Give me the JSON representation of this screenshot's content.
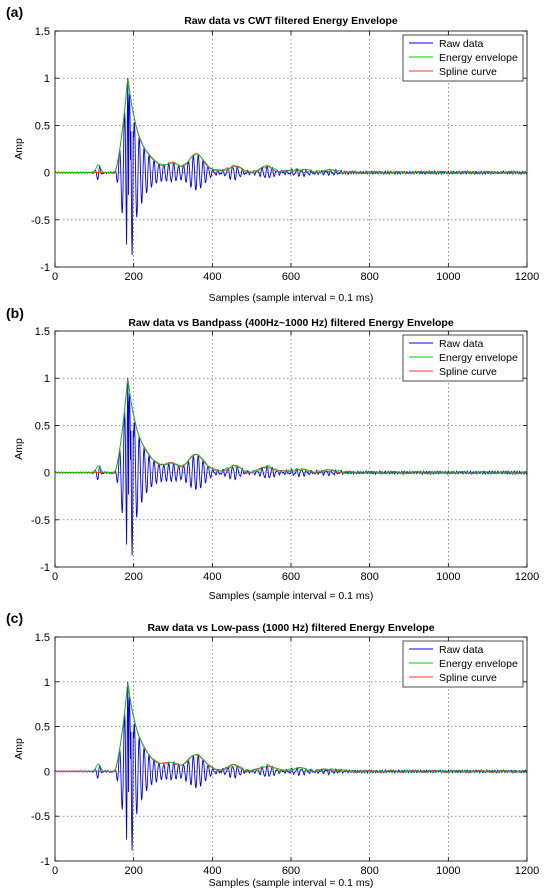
{
  "chart_data": [
    {
      "panel_label": "(a)",
      "type": "line",
      "title": "Raw data vs CWT filtered Energy Envelope",
      "xlabel": "Samples (sample interval = 0.1 ms)",
      "ylabel": "Amp",
      "xlim": [
        0,
        1200
      ],
      "ylim": [
        -1,
        1.5
      ],
      "x_ticks": [
        0,
        200,
        400,
        600,
        800,
        1000,
        1200
      ],
      "y_ticks": [
        -1,
        -0.5,
        0,
        0.5,
        1,
        1.5
      ],
      "grid": true,
      "legend_position": "top-right",
      "series": [
        {
          "name": "Raw data",
          "color": "#0000ff"
        },
        {
          "name": "Energy envelope",
          "color": "#00cc00"
        },
        {
          "name": "Spline curve",
          "color": "#ff3333"
        }
      ],
      "peak": {
        "x": 185,
        "y": 1.0
      },
      "min": {
        "x": 195,
        "y": -0.88
      }
    },
    {
      "panel_label": "(b)",
      "type": "line",
      "title": "Raw data vs Bandpass (400Hz~1000 Hz) filtered Energy Envelope",
      "xlabel": "Samples (sample interval = 0.1 ms)",
      "ylabel": "Amp",
      "xlim": [
        0,
        1200
      ],
      "ylim": [
        -1,
        1.5
      ],
      "x_ticks": [
        0,
        200,
        400,
        600,
        800,
        1000,
        1200
      ],
      "y_ticks": [
        -1,
        -0.5,
        0,
        0.5,
        1,
        1.5
      ],
      "grid": true,
      "legend_position": "top-right",
      "series": [
        {
          "name": "Raw data",
          "color": "#0000ff"
        },
        {
          "name": "Energy envelope",
          "color": "#00cc00"
        },
        {
          "name": "Spline curve",
          "color": "#ff3333"
        }
      ],
      "peak": {
        "x": 185,
        "y": 1.0
      },
      "min": {
        "x": 195,
        "y": -0.88
      }
    },
    {
      "panel_label": "(c)",
      "type": "line",
      "title": "Raw data vs Low-pass (1000 Hz) filtered Energy Envelope",
      "xlabel": "Samples (sample interval = 0.1 ms)",
      "ylabel": "Amp",
      "xlim": [
        0,
        1200
      ],
      "ylim": [
        -1,
        1.5
      ],
      "x_ticks": [
        0,
        200,
        400,
        600,
        800,
        1000,
        1200
      ],
      "y_ticks": [
        -1,
        -0.5,
        0,
        0.5,
        1,
        1.5
      ],
      "grid": true,
      "legend_position": "top-right",
      "series": [
        {
          "name": "Raw data",
          "color": "#0000ff"
        },
        {
          "name": "Energy envelope",
          "color": "#00cc00"
        },
        {
          "name": "Spline curve",
          "color": "#ff3333"
        }
      ],
      "peak": {
        "x": 185,
        "y": 1.0
      },
      "min": {
        "x": 195,
        "y": -0.88
      }
    }
  ]
}
